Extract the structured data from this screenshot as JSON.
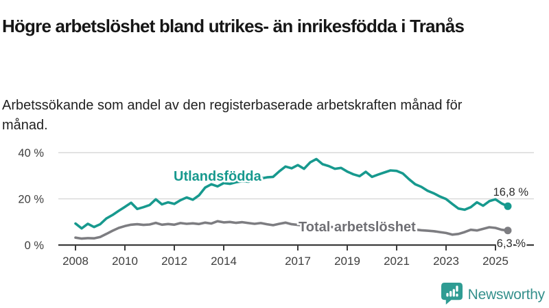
{
  "header": {
    "title": "Högre arbetslöshet bland utrikes- än inrikesfödda i Tranås",
    "subtitle": "Arbetssökande som andel av den registerbaserade arbetskraften månad för månad."
  },
  "chart_data": {
    "type": "line",
    "title": "Arbetssökande som andel av den registerbaserade arbetskraften månad för månad",
    "x_start": 2008,
    "x_step": 0.25,
    "x_ticks": [
      2008,
      2010,
      2012,
      2014,
      2017,
      2019,
      2021,
      2023,
      2025
    ],
    "y_ticks": [
      0,
      20,
      40
    ],
    "y_tick_suffix": " %",
    "ylim": [
      0,
      44
    ],
    "grid": "horizontal",
    "legend_position": "inline-labels",
    "series": [
      {
        "name": "Utlandsfödda",
        "color": "#17998e",
        "label_color": "#17998e",
        "end_label": "16,8 %",
        "end_value": 16.8,
        "values": [
          9.3,
          7.2,
          9.2,
          7.8,
          9.0,
          11.5,
          13.0,
          14.8,
          16.5,
          18.3,
          15.6,
          16.4,
          17.3,
          19.8,
          17.6,
          18.5,
          17.8,
          19.4,
          20.6,
          19.6,
          21.5,
          24.9,
          26.3,
          25.4,
          26.8,
          26.5,
          27.2,
          27.6,
          27.4,
          28.2,
          28.8,
          29.3,
          29.5,
          31.9,
          34.0,
          33.2,
          34.6,
          33.0,
          35.8,
          37.2,
          35.0,
          34.2,
          33.0,
          33.4,
          31.8,
          30.6,
          29.8,
          31.7,
          29.5,
          30.5,
          31.4,
          32.3,
          32.1,
          31.0,
          28.5,
          26.3,
          25.2,
          23.5,
          22.4,
          21.0,
          19.9,
          17.8,
          15.8,
          15.3,
          16.4,
          18.5,
          17.0,
          19.0,
          19.8,
          18.0,
          16.8
        ]
      },
      {
        "name": "Total arbetslöshet",
        "color": "#7d7d81",
        "label_color": "#6f6f74",
        "end_label": "6,3 %",
        "end_value": 6.3,
        "values": [
          3.2,
          2.8,
          3.0,
          2.9,
          3.5,
          4.8,
          6.2,
          7.4,
          8.2,
          8.8,
          9.0,
          8.7,
          8.9,
          9.6,
          8.8,
          9.1,
          8.8,
          9.5,
          9.2,
          9.4,
          9.1,
          9.7,
          9.3,
          10.3,
          9.8,
          10.0,
          9.6,
          9.9,
          9.5,
          9.2,
          9.5,
          9.0,
          8.6,
          9.2,
          9.7,
          9.0,
          8.7,
          8.5,
          8.3,
          8.2,
          8.0,
          7.9,
          7.7,
          7.6,
          7.4,
          7.3,
          7.2,
          7.4,
          7.3,
          7.8,
          8.0,
          7.9,
          7.7,
          7.4,
          7.0,
          6.7,
          6.4,
          6.2,
          6.0,
          5.6,
          5.2,
          4.5,
          4.8,
          5.6,
          6.6,
          6.3,
          7.0,
          7.7,
          7.4,
          6.6,
          6.3
        ]
      }
    ]
  },
  "footer": {
    "brand": "Newsworthy"
  },
  "colors": {
    "accent_teal": "#17998e",
    "line_gray": "#7d7d81",
    "grid": "#d9d9d9",
    "axis": "#3b3b3b",
    "tick_text": "#3d3d3d",
    "value_text": "#2b2b2b"
  }
}
